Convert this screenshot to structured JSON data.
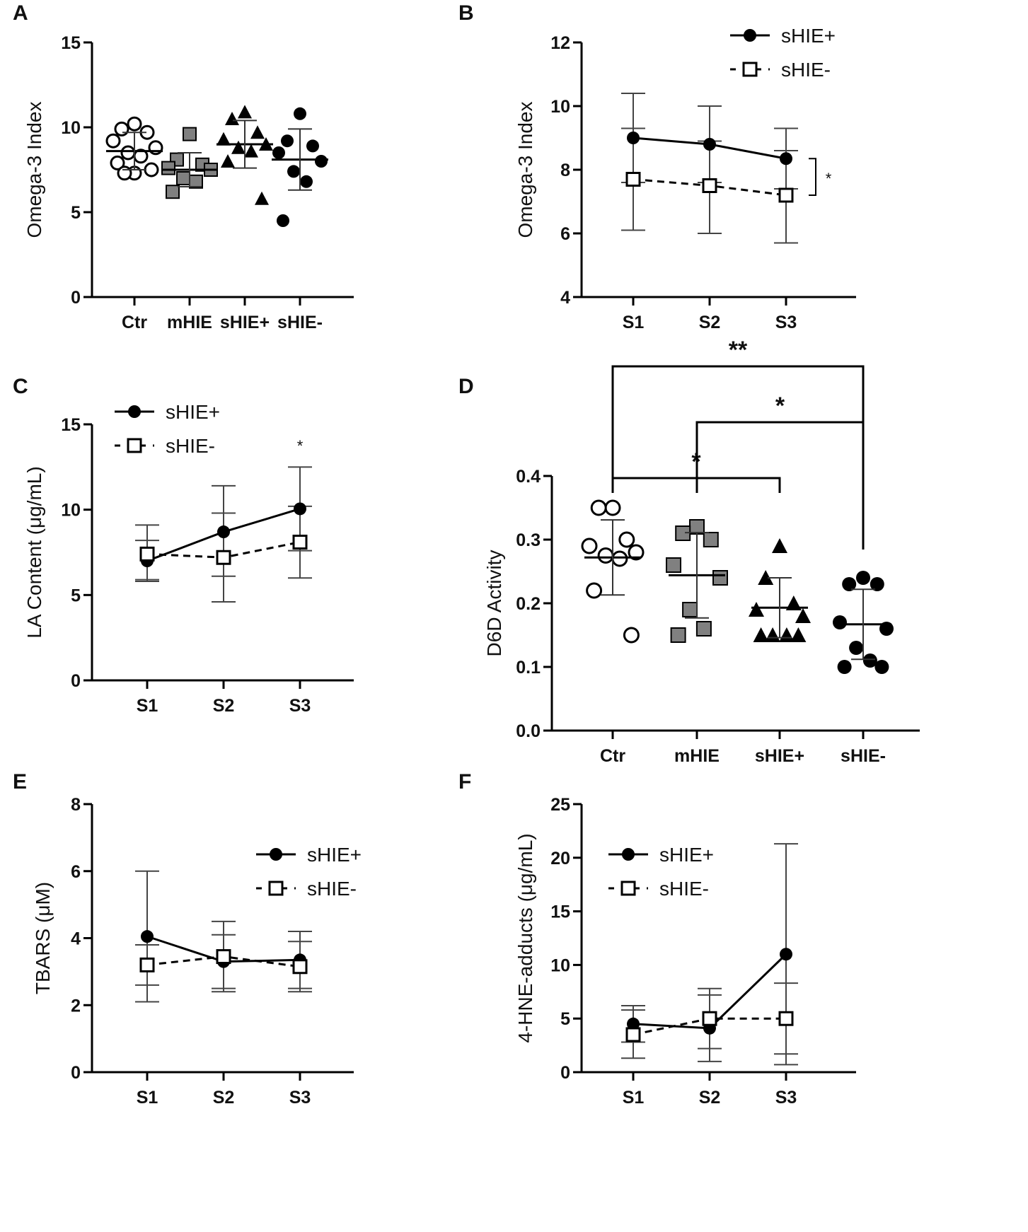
{
  "chart_data": [
    {
      "panel": "A",
      "type": "scatter",
      "ylabel": "Omega-3 Index",
      "ylim": [
        0,
        15
      ],
      "yticks": [
        0,
        5,
        10,
        15
      ],
      "categories": [
        "Ctr",
        "mHIE",
        "sHIE+",
        "sHIE-"
      ],
      "groups": [
        {
          "name": "Ctr",
          "marker": "circle-open",
          "mean": 8.6,
          "sd_low": 7.5,
          "sd_high": 9.7,
          "points": [
            10.2,
            9.9,
            9.7,
            9.2,
            8.8,
            8.5,
            8.3,
            7.9,
            7.5,
            7.3,
            7.3
          ]
        },
        {
          "name": "mHIE",
          "marker": "square-gray",
          "mean": 7.5,
          "sd_low": 6.5,
          "sd_high": 8.5,
          "points": [
            9.6,
            8.1,
            7.8,
            7.6,
            7.5,
            7.0,
            6.8,
            6.2
          ]
        },
        {
          "name": "sHIE+",
          "marker": "triangle-filled",
          "mean": 9.0,
          "sd_low": 7.6,
          "sd_high": 10.4,
          "points": [
            10.9,
            10.5,
            9.7,
            9.3,
            9.0,
            8.8,
            8.6,
            8.0,
            5.8
          ]
        },
        {
          "name": "sHIE-",
          "marker": "circle-filled",
          "mean": 8.1,
          "sd_low": 6.3,
          "sd_high": 9.9,
          "points": [
            10.8,
            9.2,
            8.9,
            8.5,
            8.0,
            7.4,
            6.8,
            4.5
          ]
        }
      ]
    },
    {
      "panel": "B",
      "type": "line",
      "ylabel": "Omega-3 Index",
      "ylim": [
        4,
        12
      ],
      "yticks": [
        4,
        6,
        8,
        10,
        12
      ],
      "x": [
        "S1",
        "S2",
        "S3"
      ],
      "series": [
        {
          "name": "sHIE+",
          "style": "solid",
          "marker": "circle-filled",
          "values": [
            9.0,
            8.8,
            8.35
          ],
          "err_low": [
            7.6,
            7.6,
            7.4
          ],
          "err_high": [
            10.4,
            10.0,
            9.3
          ]
        },
        {
          "name": "sHIE-",
          "style": "dashed",
          "marker": "square-open",
          "values": [
            7.7,
            7.5,
            7.2
          ],
          "err_low": [
            6.1,
            6.0,
            5.7
          ],
          "err_high": [
            9.3,
            8.9,
            8.6
          ]
        }
      ],
      "legend": "top-right",
      "annotations": [
        {
          "text": "*",
          "between_series": true,
          "at": "S3"
        }
      ]
    },
    {
      "panel": "C",
      "type": "line",
      "ylabel": "LA Content (μg/mL)",
      "ylim": [
        0,
        15
      ],
      "yticks": [
        0,
        5,
        10,
        15
      ],
      "x": [
        "S1",
        "S2",
        "S3"
      ],
      "series": [
        {
          "name": "sHIE+",
          "style": "solid",
          "marker": "circle-filled",
          "values": [
            7.0,
            8.7,
            10.05
          ],
          "err_low": [
            5.8,
            6.1,
            7.6
          ],
          "err_high": [
            8.2,
            11.4,
            12.5
          ]
        },
        {
          "name": "sHIE-",
          "style": "dashed",
          "marker": "square-open",
          "values": [
            7.4,
            7.2,
            8.1
          ],
          "err_low": [
            5.9,
            4.6,
            6.0
          ],
          "err_high": [
            9.1,
            9.8,
            10.2
          ]
        }
      ],
      "legend": "top-left",
      "annotations": [
        {
          "text": "*",
          "at": "S3"
        }
      ]
    },
    {
      "panel": "D",
      "type": "scatter",
      "ylabel": "D6D Activity",
      "ylim": [
        0,
        0.4
      ],
      "yticks": [
        "0.0",
        "0.1",
        "0.2",
        "0.3",
        "0.4"
      ],
      "categories": [
        "Ctr",
        "mHIE",
        "sHIE+",
        "sHIE-"
      ],
      "groups": [
        {
          "name": "Ctr",
          "marker": "circle-open",
          "mean": 0.272,
          "sd_low": 0.213,
          "sd_high": 0.331,
          "points": [
            0.35,
            0.35,
            0.3,
            0.29,
            0.28,
            0.275,
            0.27,
            0.22,
            0.15
          ]
        },
        {
          "name": "mHIE",
          "marker": "square-gray",
          "mean": 0.244,
          "sd_low": 0.177,
          "sd_high": 0.311,
          "points": [
            0.32,
            0.31,
            0.3,
            0.26,
            0.24,
            0.19,
            0.16,
            0.15
          ]
        },
        {
          "name": "sHIE+",
          "marker": "triangle-filled",
          "mean": 0.193,
          "sd_low": 0.146,
          "sd_high": 0.24,
          "points": [
            0.29,
            0.24,
            0.2,
            0.19,
            0.18,
            0.15,
            0.15,
            0.15,
            0.15
          ]
        },
        {
          "name": "sHIE-",
          "marker": "circle-filled",
          "mean": 0.167,
          "sd_low": 0.112,
          "sd_high": 0.222,
          "points": [
            0.24,
            0.23,
            0.23,
            0.17,
            0.16,
            0.13,
            0.11,
            0.1,
            0.1
          ]
        }
      ],
      "brackets": [
        {
          "from": "Ctr",
          "to": "sHIE+",
          "label": "*"
        },
        {
          "from": "mHIE",
          "to": "sHIE-",
          "label": "*"
        },
        {
          "from": "Ctr",
          "to": "sHIE-",
          "label": "**"
        }
      ]
    },
    {
      "panel": "E",
      "type": "line",
      "ylabel": "TBARS (μM)",
      "ylim": [
        0,
        8
      ],
      "yticks": [
        0,
        2,
        4,
        6,
        8
      ],
      "x": [
        "S1",
        "S2",
        "S3"
      ],
      "series": [
        {
          "name": "sHIE+",
          "style": "solid",
          "marker": "circle-filled",
          "values": [
            4.05,
            3.3,
            3.35
          ],
          "err_low": [
            2.1,
            2.4,
            2.5
          ],
          "err_high": [
            6.0,
            4.5,
            4.2
          ]
        },
        {
          "name": "sHIE-",
          "style": "dashed",
          "marker": "square-open",
          "values": [
            3.2,
            3.45,
            3.15
          ],
          "err_low": [
            2.6,
            2.5,
            2.4
          ],
          "err_high": [
            3.8,
            4.1,
            3.9
          ]
        }
      ],
      "legend": "top-right"
    },
    {
      "panel": "F",
      "type": "line",
      "ylabel": "4-HNE-adducts (μg/mL)",
      "ylim": [
        0,
        25
      ],
      "yticks": [
        0,
        5,
        10,
        15,
        20,
        25
      ],
      "x": [
        "S1",
        "S2",
        "S3"
      ],
      "series": [
        {
          "name": "sHIE+",
          "style": "solid",
          "marker": "circle-filled",
          "values": [
            4.5,
            4.1,
            11.0
          ],
          "err_low": [
            2.8,
            1.0,
            0.7
          ],
          "err_high": [
            6.2,
            7.2,
            21.3
          ]
        },
        {
          "name": "sHIE-",
          "style": "dashed",
          "marker": "square-open",
          "values": [
            3.5,
            5.0,
            5.0
          ],
          "err_low": [
            1.3,
            2.2,
            1.7
          ],
          "err_high": [
            5.8,
            7.8,
            8.3
          ]
        }
      ],
      "legend": "top-left"
    }
  ]
}
